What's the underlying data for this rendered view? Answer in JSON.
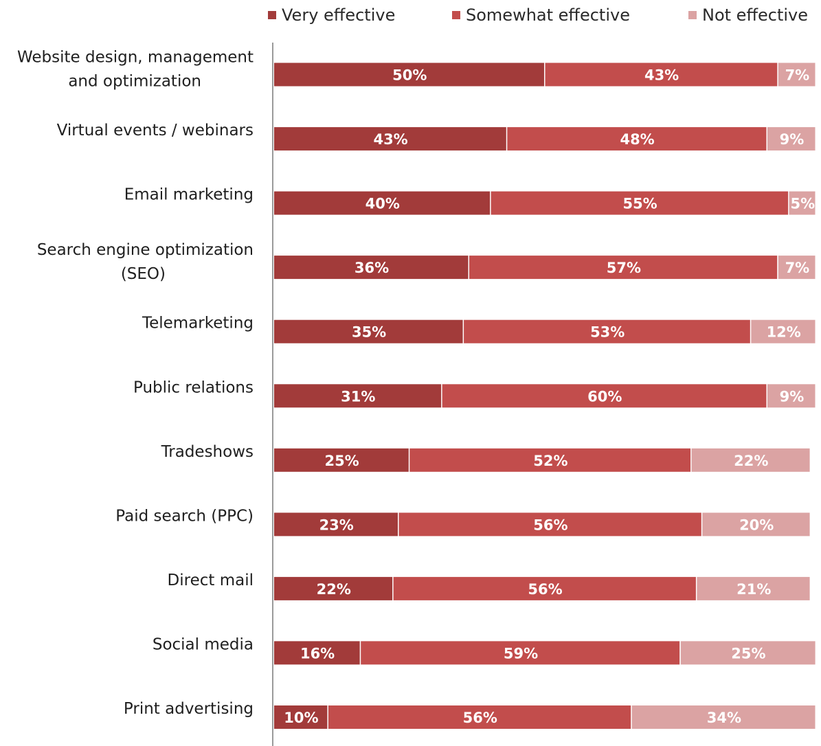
{
  "chart_data": {
    "type": "bar",
    "orientation": "horizontal",
    "stacked": true,
    "title": "",
    "xlabel": "",
    "ylabel": "",
    "xlim": [
      0,
      100
    ],
    "grid": false,
    "legend_position": "top",
    "categories": [
      "Website design, management and optimization",
      "Virtual events / webinars",
      "Email marketing",
      "Search engine optimization (SEO)",
      "Telemarketing",
      "Public relations",
      "Tradeshows",
      "Paid search (PPC)",
      "Direct mail",
      "Social media",
      "Print advertising"
    ],
    "category_lines": [
      [
        "Website design, management",
        "and optimization"
      ],
      [
        "Virtual events / webinars"
      ],
      [
        "Email marketing"
      ],
      [
        "Search engine optimization",
        "(SEO)"
      ],
      [
        "Telemarketing"
      ],
      [
        "Public relations"
      ],
      [
        "Tradeshows"
      ],
      [
        "Paid search (PPC)"
      ],
      [
        "Direct mail"
      ],
      [
        "Social media"
      ],
      [
        "Print advertising"
      ]
    ],
    "series": [
      {
        "name": "Very effective",
        "color": "#a23b3a",
        "values": [
          50,
          43,
          40,
          36,
          35,
          31,
          25,
          23,
          22,
          16,
          10
        ]
      },
      {
        "name": "Somewhat effective",
        "color": "#c24d4c",
        "values": [
          43,
          48,
          55,
          57,
          53,
          60,
          52,
          56,
          56,
          59,
          56
        ]
      },
      {
        "name": "Not effective",
        "color": "#dba3a3",
        "values": [
          7,
          9,
          5,
          7,
          12,
          9,
          22,
          20,
          21,
          25,
          34
        ]
      }
    ],
    "value_suffix": "%"
  }
}
